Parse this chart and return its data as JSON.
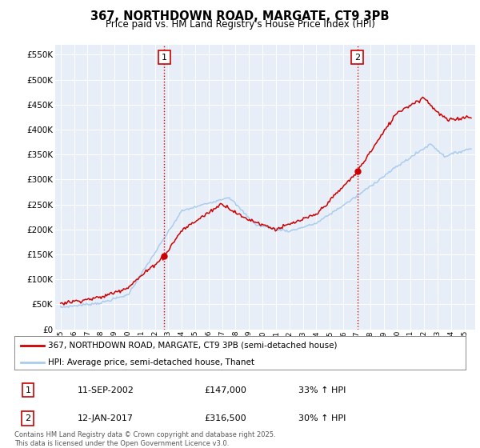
{
  "title": "367, NORTHDOWN ROAD, MARGATE, CT9 3PB",
  "subtitle": "Price paid vs. HM Land Registry's House Price Index (HPI)",
  "ylim": [
    0,
    570000
  ],
  "yticks": [
    0,
    50000,
    100000,
    150000,
    200000,
    250000,
    300000,
    350000,
    400000,
    450000,
    500000,
    550000
  ],
  "line1_color": "#cc0000",
  "line2_color": "#aaccee",
  "marker1_date": 2002.71,
  "marker1_value": 147000,
  "marker2_date": 2017.04,
  "marker2_value": 316500,
  "legend1": "367, NORTHDOWN ROAD, MARGATE, CT9 3PB (semi-detached house)",
  "legend2": "HPI: Average price, semi-detached house, Thanet",
  "annotation1_date": "11-SEP-2002",
  "annotation1_price": "£147,000",
  "annotation1_hpi": "33% ↑ HPI",
  "annotation2_date": "12-JAN-2017",
  "annotation2_price": "£316,500",
  "annotation2_hpi": "30% ↑ HPI",
  "footer": "Contains HM Land Registry data © Crown copyright and database right 2025.\nThis data is licensed under the Open Government Licence v3.0.",
  "bg_color": "#e8eef8",
  "xlim_left": 1994.6,
  "xlim_right": 2025.8
}
